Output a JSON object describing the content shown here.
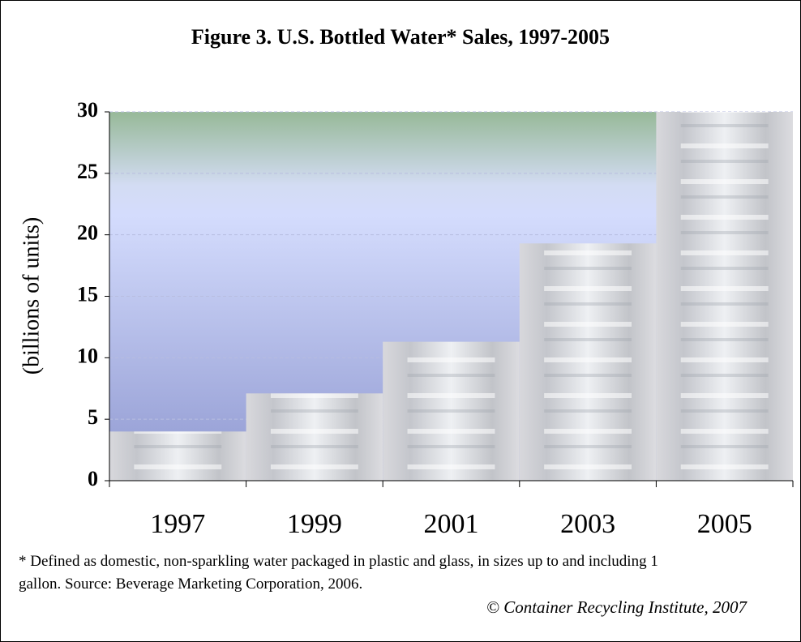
{
  "chart_data": {
    "type": "bar",
    "title": "Figure 3. U.S. Bottled Water* Sales, 1997-2005",
    "ylabel": "(billions of units)",
    "categories": [
      "1997",
      "1999",
      "2001",
      "2003",
      "2005"
    ],
    "values": [
      4.0,
      7.1,
      11.3,
      19.3,
      30.0
    ],
    "ylim": [
      0,
      30
    ],
    "yticks": [
      0,
      5,
      10,
      15,
      20,
      25,
      30
    ],
    "grid": true,
    "footnote": "* Defined as domestic, non-sparkling water packaged in plastic and glass, in sizes up to and including 1 gallon. Source: Beverage Marketing Corporation, 2006.",
    "credit": "© Container Recycling Institute, 2007"
  }
}
